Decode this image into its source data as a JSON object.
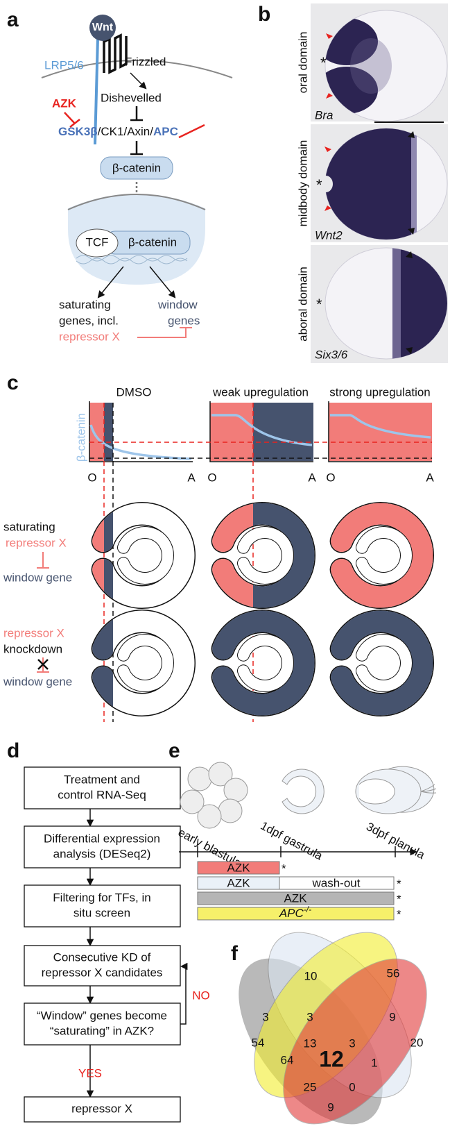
{
  "a": {
    "label": "a",
    "wnt": "Wnt",
    "lrp": "LRP5/6",
    "frizzled": "Frizzled",
    "dishevelled": "Dishevelled",
    "inhibitor": "AZK",
    "complex_gsk": "GSK3β",
    "complex_mid": "/CK1/Axin/",
    "complex_apc": "APC",
    "cytoplasmic": "β-catenin",
    "tcf": "TCF",
    "nuclear": "β-catenin",
    "saturating": [
      "saturating",
      "genes, incl.",
      "repressor X"
    ],
    "window": [
      "window",
      "genes"
    ]
  },
  "b": {
    "label": "b",
    "mark": "*",
    "rows": [
      {
        "domain": "oral domain",
        "gene": "Bra"
      },
      {
        "domain": "midbody domain",
        "gene": "Wnt2"
      },
      {
        "domain": "aboral domain",
        "gene": "Six3/6"
      }
    ]
  },
  "c": {
    "label": "c",
    "conditions": [
      "DMSO",
      "weak upregulation",
      "strong upregulation"
    ],
    "y_label": "β-catenin",
    "x_start": "O",
    "x_end": "A",
    "row1": [
      "saturating",
      "repressor X",
      "window gene"
    ],
    "row2": [
      "repressor X",
      "knockdown",
      "window gene"
    ]
  },
  "d": {
    "label": "d",
    "steps": [
      [
        "Treatment and",
        "control RNA-Seq"
      ],
      [
        "Differential expression",
        "analysis (DESeq2)"
      ],
      [
        "Filtering for TFs, in",
        "situ screen"
      ],
      [
        "Consecutive KD of",
        "repressor X candidates"
      ],
      [
        "“Window” genes become",
        "“saturating” in AZK?"
      ],
      [
        "repressor X"
      ]
    ],
    "no": "NO",
    "yes": "YES"
  },
  "e": {
    "label": "e",
    "stages": [
      "early blastula",
      "1dpf gastrula",
      "3dpf planula"
    ],
    "bars": [
      "AZK",
      "AZK",
      "wash-out",
      "AZK",
      "APC"
    ],
    "bar4_sup": "-/-",
    "mark": "*"
  },
  "f": {
    "label": "f",
    "counts": [
      10,
      56,
      3,
      3,
      9,
      54,
      13,
      3,
      20,
      64,
      12,
      1,
      25,
      0,
      9
    ]
  }
}
